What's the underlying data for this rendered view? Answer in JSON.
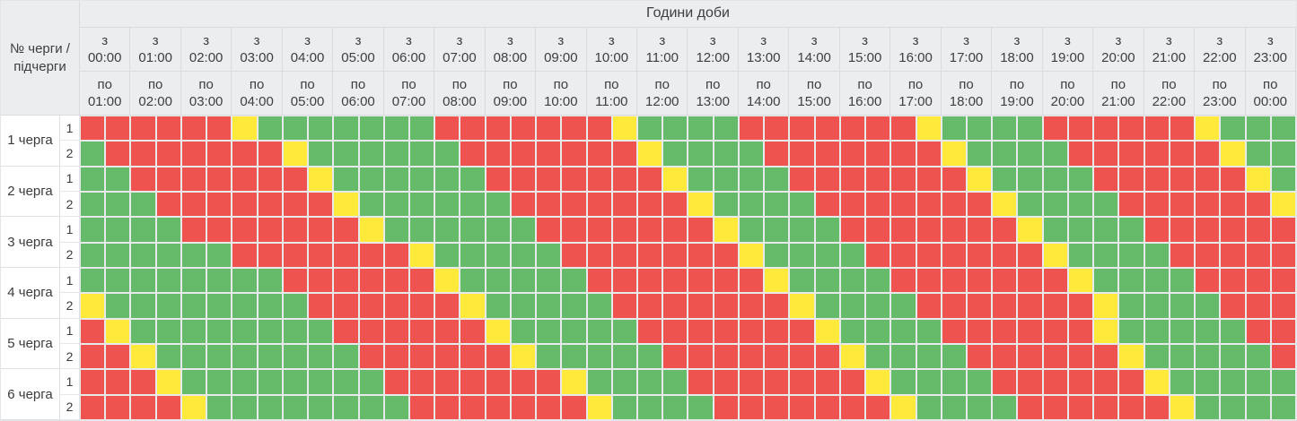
{
  "header": {
    "title": "Години доби",
    "corner_label": "№ черги / підчерги",
    "from_prefix": "з",
    "to_prefix": "по",
    "columns": [
      {
        "from": "00:00",
        "to": "01:00"
      },
      {
        "from": "01:00",
        "to": "02:00"
      },
      {
        "from": "02:00",
        "to": "03:00"
      },
      {
        "from": "03:00",
        "to": "04:00"
      },
      {
        "from": "04:00",
        "to": "05:00"
      },
      {
        "from": "05:00",
        "to": "06:00"
      },
      {
        "from": "06:00",
        "to": "07:00"
      },
      {
        "from": "07:00",
        "to": "08:00"
      },
      {
        "from": "08:00",
        "to": "09:00"
      },
      {
        "from": "09:00",
        "to": "10:00"
      },
      {
        "from": "10:00",
        "to": "11:00"
      },
      {
        "from": "11:00",
        "to": "12:00"
      },
      {
        "from": "12:00",
        "to": "13:00"
      },
      {
        "from": "13:00",
        "to": "14:00"
      },
      {
        "from": "14:00",
        "to": "15:00"
      },
      {
        "from": "15:00",
        "to": "16:00"
      },
      {
        "from": "16:00",
        "to": "17:00"
      },
      {
        "from": "17:00",
        "to": "18:00"
      },
      {
        "from": "18:00",
        "to": "19:00"
      },
      {
        "from": "19:00",
        "to": "20:00"
      },
      {
        "from": "20:00",
        "to": "21:00"
      },
      {
        "from": "21:00",
        "to": "22:00"
      },
      {
        "from": "22:00",
        "to": "23:00"
      },
      {
        "from": "23:00",
        "to": "00:00"
      }
    ]
  },
  "legend": {
    "power_on_color": "#66BB6A",
    "outage_color": "#EF5350",
    "possible_outage_color": "#FFE93B",
    "slot_meanings": {
      "G": "power-on",
      "R": "outage",
      "Y": "possible-outage"
    }
  },
  "slot_minutes": 30,
  "queues": [
    {
      "name": "1 черга",
      "rows": [
        {
          "sub": "1",
          "slots": "RRRRRRYGGGGGGGRRRRRRRYGGGGRRRRRRRYGGGGRRRRRRYGGG"
        },
        {
          "sub": "2",
          "slots": "GRRRRRRRYGGGGGGRRRRRRRYGGGGRRRRRRRYGGGGRRRRRRYGG"
        }
      ]
    },
    {
      "name": "2 черга",
      "rows": [
        {
          "sub": "1",
          "slots": "GGRRRRRRRYGGGGGGRRRRRRRYGGGGRRRRRRRYGGGGRRRRRRYG"
        },
        {
          "sub": "2",
          "slots": "GGGRRRRRRRYGGGGGGRRRRRRRYGGGGRRRRRRRYGGGGRRRRRRY"
        }
      ]
    },
    {
      "name": "3 черга",
      "rows": [
        {
          "sub": "1",
          "slots": "GGGGRRRRRRRYGGGGGGRRRRRRRYGGGGRRRRRRRYGGGGRRRRRR"
        },
        {
          "sub": "2",
          "slots": "GGGGGGRRRRRRRYGGGGGRRRRRRRYGGGGRRRRRRRYGGGGRRRRR"
        }
      ]
    },
    {
      "name": "4 черга",
      "rows": [
        {
          "sub": "1",
          "slots": "GGGGGGGGRRRRRRYGGGGGRRRRRRRYGGGGRRRRRRRYGGGGRRRR"
        },
        {
          "sub": "2",
          "slots": "YGGGGGGGGRRRRRRYGGGGGRRRRRRRYGGGGRRRRRRRYGGGGRRR"
        }
      ]
    },
    {
      "name": "5 черга",
      "rows": [
        {
          "sub": "1",
          "slots": "RYGGGGGGGGRRRRRRYGGGGGRRRRRRRYGGGGRRRRRRYGGGGGRR"
        },
        {
          "sub": "2",
          "slots": "RRYGGGGGGGGRRRRRRYGGGGGRRRRRRRYGGGGRRRRRRYGGGGGR"
        }
      ]
    },
    {
      "name": "6 черга",
      "rows": [
        {
          "sub": "1",
          "slots": "RRRYGGGGGGGGRRRRRRRYGGGGRRRRRRRYGGGGRRRRRRYGGGGG"
        },
        {
          "sub": "2",
          "slots": "RRRRYGGGGGGGGRRRRRRRYGGGGRRRRRRRYGGGGRRRRRRYGGGG"
        }
      ]
    }
  ]
}
